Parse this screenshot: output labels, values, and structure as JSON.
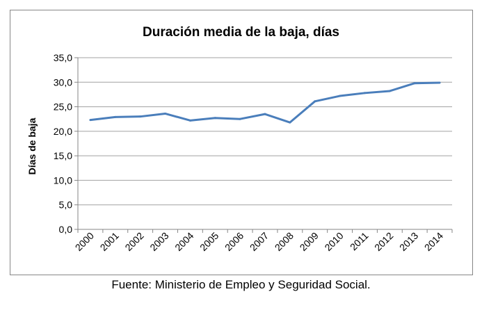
{
  "chart_data": {
    "type": "line",
    "title": "Duración media de la baja, días",
    "xlabel": "",
    "ylabel": "Días de baja",
    "categories": [
      "2000",
      "2001",
      "2002",
      "2003",
      "2004",
      "2005",
      "2006",
      "2007",
      "2008",
      "2009",
      "2010",
      "2011",
      "2012",
      "2013",
      "2014"
    ],
    "series": [
      {
        "values": [
          22.3,
          22.9,
          23.0,
          23.6,
          22.2,
          22.7,
          22.5,
          23.5,
          21.8,
          26.1,
          27.2,
          27.8,
          28.2,
          29.8,
          29.9
        ],
        "color": "#4a7ebb"
      }
    ],
    "ylim": [
      0,
      35
    ],
    "yticks": [
      "0,0",
      "5,0",
      "10,0",
      "15,0",
      "20,0",
      "25,0",
      "30,0",
      "35,0"
    ],
    "grid": true,
    "legend": "none"
  },
  "source": "Fuente: Ministerio de Empleo y Seguridad Social."
}
